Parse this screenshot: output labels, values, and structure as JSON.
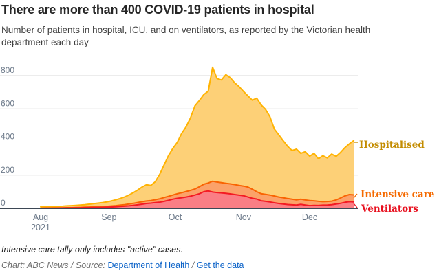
{
  "title": "There are more than 400 COVID-19 patients in hospital",
  "subtitle": "Number of patients in hospital, ICU, and on ventilators, as reported by the Victorian health department each day",
  "note": "Intensive care tally only includes \"active\" cases.",
  "credits": {
    "prefix": "Chart: ABC News / Source:",
    "source_link": "Department of Health",
    "separator": " / ",
    "data_link": "Get the data",
    "link_color": "#0c63c8"
  },
  "chart_data": {
    "type": "area",
    "x_unit": "days since 1 Aug 2021",
    "x_tick_labels": [
      "Aug",
      "Sep",
      "Oct",
      "Nov",
      "Dec"
    ],
    "x_tick_sublabel": "2021",
    "x_tick_days": [
      0,
      31,
      61,
      92,
      122
    ],
    "x_end_day": 142,
    "y_ticks": [
      0,
      200,
      400,
      600,
      800
    ],
    "ylim": [
      0,
      870
    ],
    "grid": "horizontal",
    "legend_position": "right-annotations",
    "axis_color": "#6d7a8a",
    "grid_color": "#d8d8d8",
    "baseline_color": "#3d4855",
    "days": [
      0,
      2,
      4,
      6,
      8,
      10,
      12,
      14,
      16,
      18,
      20,
      22,
      24,
      26,
      28,
      30,
      32,
      34,
      36,
      38,
      40,
      42,
      44,
      46,
      48,
      50,
      52,
      54,
      56,
      58,
      60,
      62,
      64,
      66,
      68,
      70,
      72,
      74,
      76,
      78,
      80,
      82,
      84,
      86,
      88,
      90,
      92,
      94,
      96,
      98,
      100,
      102,
      104,
      106,
      108,
      110,
      112,
      114,
      116,
      118,
      120,
      122,
      124,
      126,
      128,
      130,
      132,
      134,
      136,
      138,
      140,
      142
    ],
    "series": [
      {
        "name": "Hospitalised",
        "line_color": "#ffb302",
        "fill_color": "#fdd077",
        "label_color": "#c38c00",
        "values": [
          9,
          10,
          11,
          10,
          12,
          13,
          15,
          16,
          18,
          20,
          22,
          25,
          28,
          31,
          34,
          38,
          44,
          51,
          59,
          68,
          80,
          94,
          110,
          128,
          142,
          138,
          160,
          205,
          262,
          318,
          362,
          398,
          452,
          492,
          546,
          618,
          650,
          686,
          706,
          851,
          782,
          774,
          806,
          788,
          757,
          734,
          705,
          678,
          652,
          664,
          624,
          597,
          552,
          478,
          443,
          408,
          374,
          348,
          357,
          331,
          341,
          314,
          331,
          299,
          317,
          304,
          327,
          313,
          337,
          366,
          389,
          408
        ]
      },
      {
        "name": "Intensive care",
        "line_color": "#f96302",
        "fill_color": "#fba269",
        "label_color": "#f56a00",
        "values": [
          1,
          1,
          2,
          2,
          3,
          3,
          4,
          4,
          5,
          6,
          7,
          8,
          9,
          10,
          11,
          12,
          14,
          16,
          19,
          22,
          26,
          30,
          35,
          40,
          44,
          47,
          52,
          57,
          65,
          72,
          80,
          88,
          94,
          101,
          108,
          116,
          130,
          145,
          152,
          163,
          158,
          154,
          150,
          147,
          143,
          138,
          134,
          128,
          115,
          100,
          88,
          84,
          80,
          74,
          68,
          64,
          59,
          55,
          51,
          55,
          50,
          47,
          45,
          42,
          40,
          41,
          43,
          50,
          62,
          75,
          83,
          81
        ]
      },
      {
        "name": "Ventilators",
        "line_color": "#f41a22",
        "fill_color": "#fa7e85",
        "label_color": "#e8101f",
        "values": [
          0,
          1,
          1,
          1,
          1,
          2,
          2,
          2,
          3,
          3,
          4,
          4,
          5,
          5,
          6,
          7,
          8,
          9,
          11,
          13,
          15,
          18,
          21,
          25,
          29,
          31,
          34,
          37,
          42,
          48,
          55,
          60,
          64,
          68,
          73,
          80,
          88,
          100,
          105,
          98,
          95,
          93,
          90,
          87,
          83,
          79,
          76,
          68,
          60,
          56,
          45,
          42,
          38,
          33,
          29,
          26,
          23,
          21,
          20,
          24,
          20,
          16,
          18,
          17,
          19,
          20,
          22,
          26,
          30,
          36,
          40,
          38
        ]
      }
    ]
  }
}
